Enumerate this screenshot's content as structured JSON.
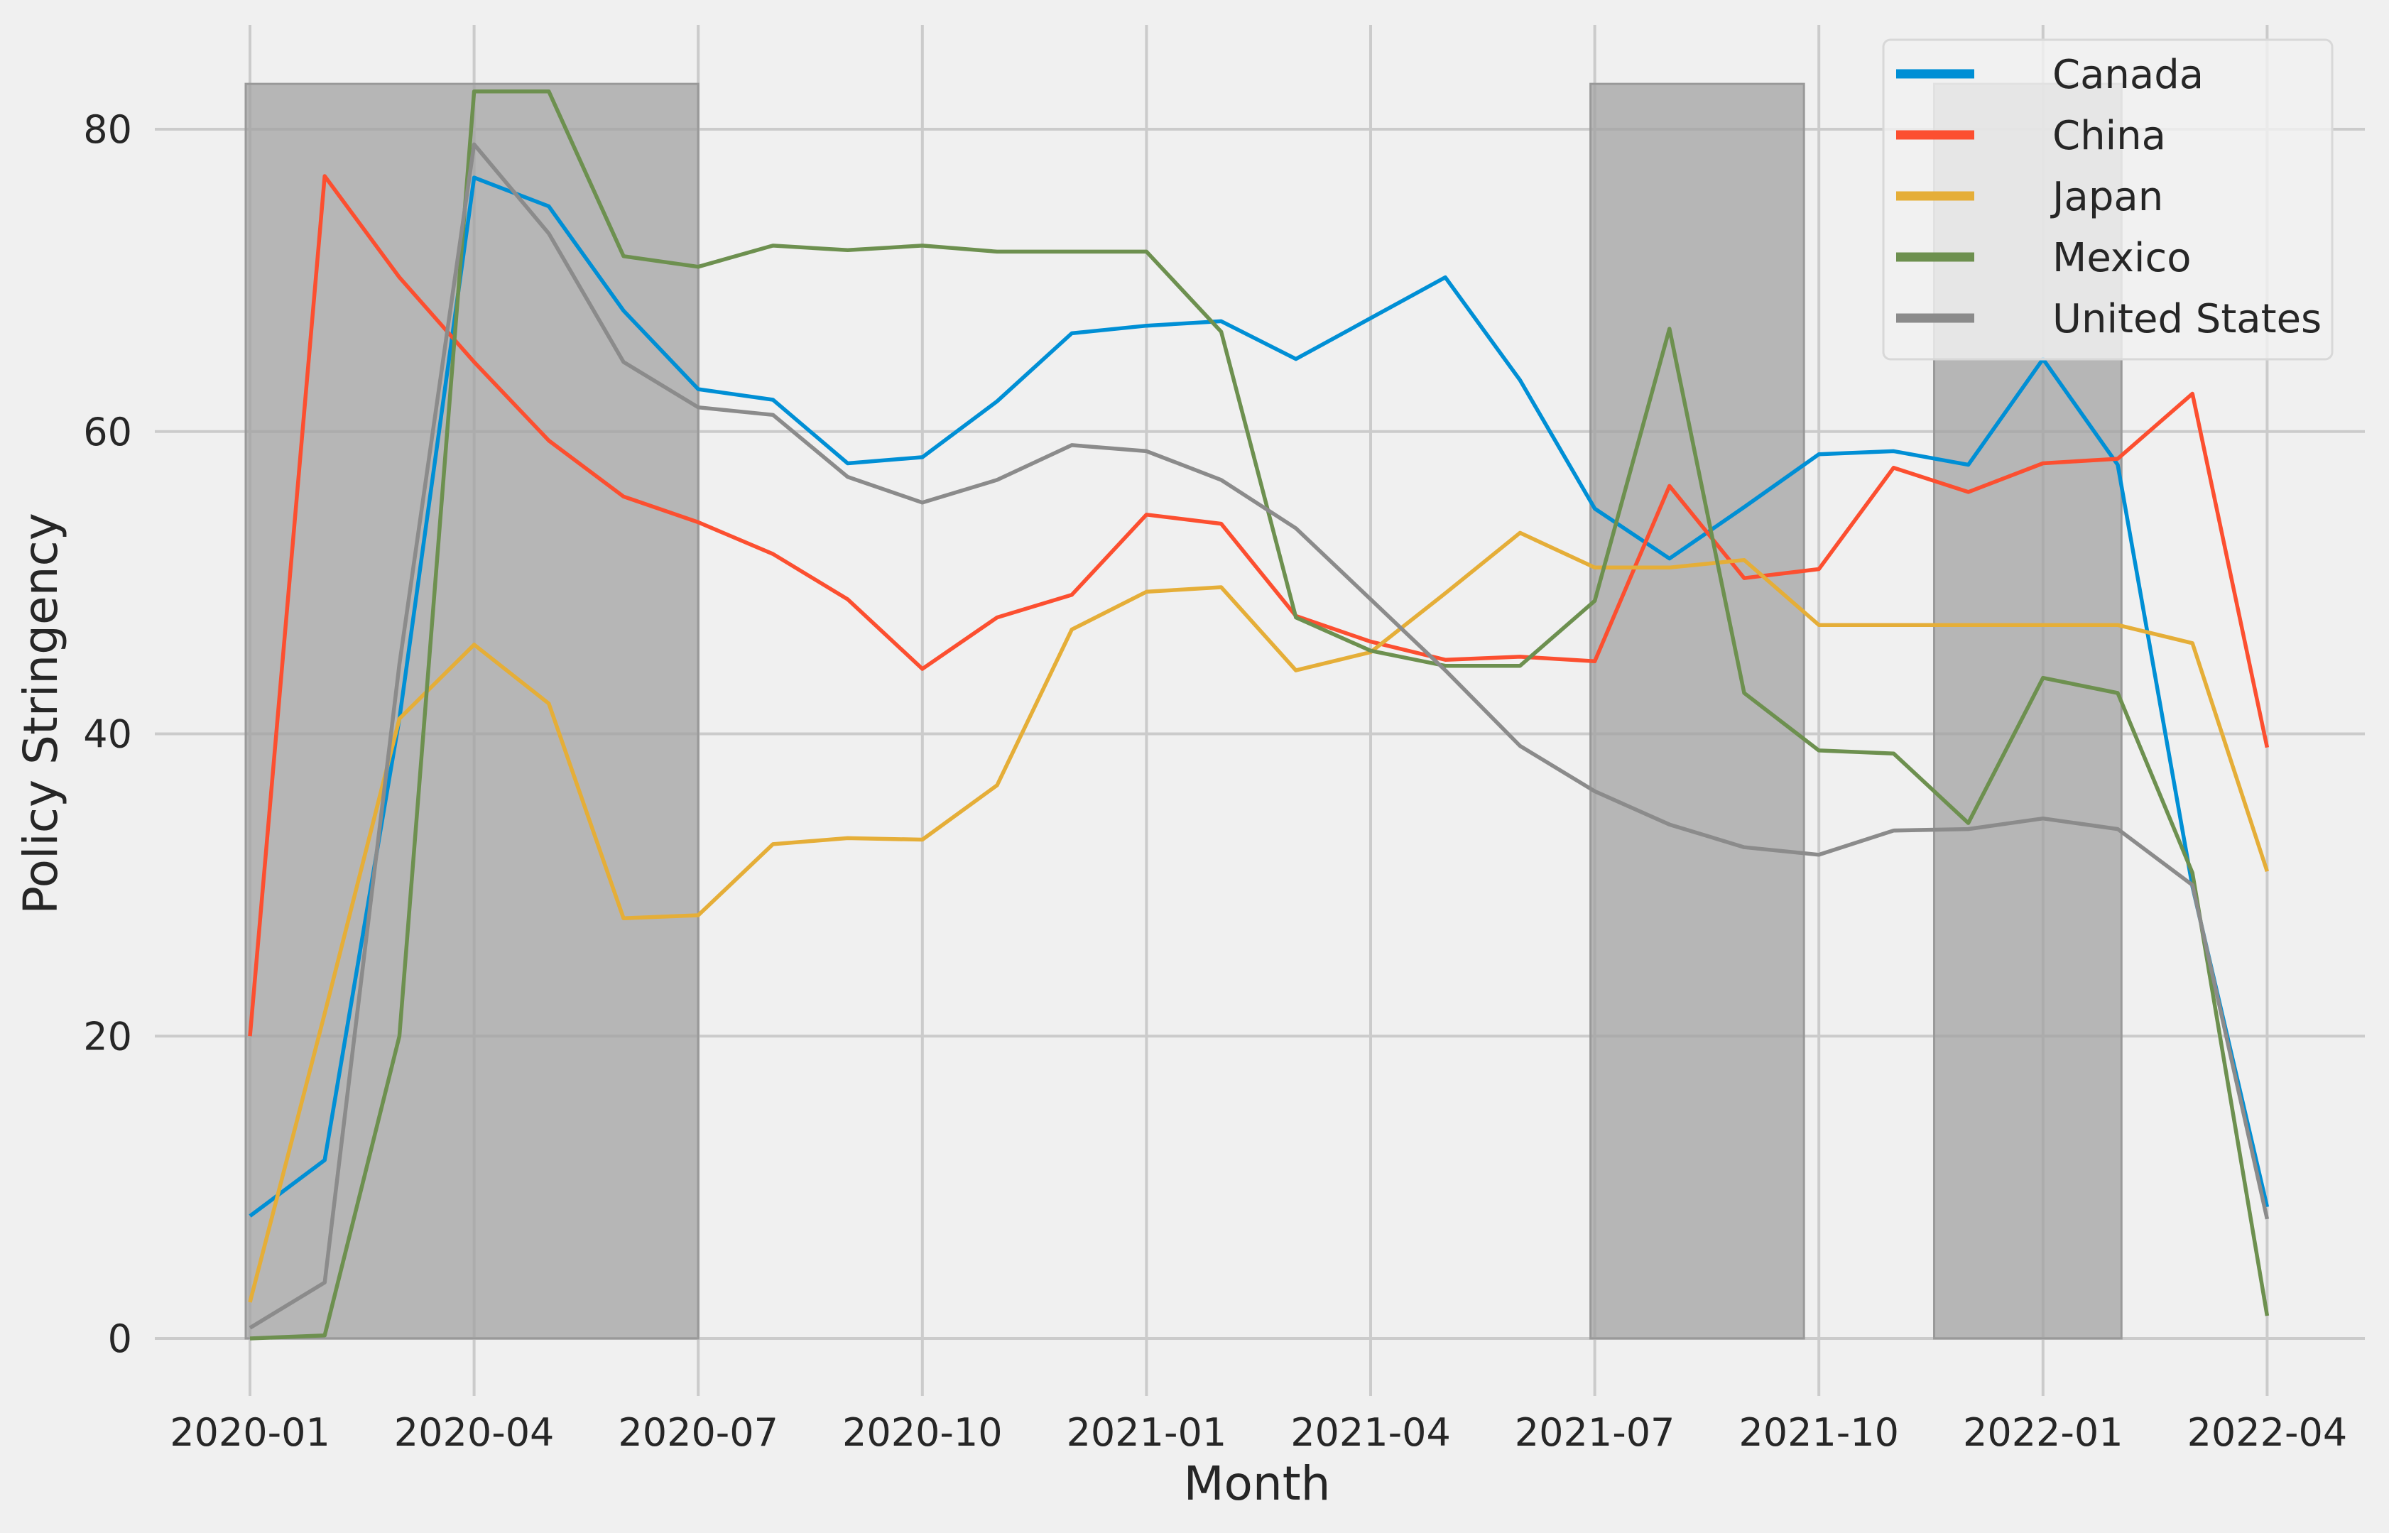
{
  "chart_data": {
    "type": "line",
    "title": "",
    "xlabel": "Month",
    "ylabel": "Policy Stringency",
    "x": [
      "2020-01",
      "2020-02",
      "2020-03",
      "2020-04",
      "2020-05",
      "2020-06",
      "2020-07",
      "2020-08",
      "2020-09",
      "2020-10",
      "2020-11",
      "2020-12",
      "2021-01",
      "2021-02",
      "2021-03",
      "2021-04",
      "2021-05",
      "2021-06",
      "2021-07",
      "2021-08",
      "2021-09",
      "2021-10",
      "2021-11",
      "2021-12",
      "2022-01",
      "2022-02",
      "2022-03",
      "2022-04"
    ],
    "x_ticks": [
      "2020-01",
      "2020-04",
      "2020-07",
      "2020-10",
      "2021-01",
      "2021-04",
      "2021-07",
      "2021-10",
      "2022-01",
      "2022-04"
    ],
    "y_ticks": [
      0,
      20,
      40,
      60,
      80
    ],
    "ylim": [
      -4,
      87
    ],
    "grid": true,
    "legend_position": "top-right",
    "shaded_periods": [
      {
        "start": 0,
        "end": 6,
        "top": 83
      },
      {
        "start": 18,
        "end": 20.8,
        "top": 83
      },
      {
        "start": 22.6,
        "end": 25.05,
        "top": 83
      }
    ],
    "series": [
      {
        "name": "Canada",
        "color": "#008fd5",
        "values": [
          8.1,
          11.8,
          41.0,
          76.8,
          74.9,
          68.0,
          62.8,
          62.1,
          57.9,
          58.3,
          62.0,
          66.5,
          67.0,
          67.3,
          64.8,
          67.5,
          70.2,
          63.4,
          54.9,
          51.6,
          55.0,
          58.5,
          58.7,
          57.8,
          64.8,
          57.8,
          29.9,
          8.7
        ]
      },
      {
        "name": "China",
        "color": "#fc4f30",
        "values": [
          20.0,
          76.9,
          70.2,
          64.6,
          59.4,
          55.7,
          54.0,
          51.9,
          48.9,
          44.3,
          47.7,
          49.2,
          54.5,
          53.9,
          47.8,
          46.1,
          44.9,
          45.1,
          44.8,
          56.4,
          50.3,
          50.9,
          57.6,
          56.0,
          57.9,
          58.2,
          62.5,
          39.1
        ]
      },
      {
        "name": "Japan",
        "color": "#e5ae38",
        "values": [
          2.4,
          21.5,
          41.0,
          45.9,
          42.0,
          27.8,
          28.0,
          32.7,
          33.1,
          33.0,
          36.6,
          46.9,
          49.4,
          49.7,
          44.2,
          45.4,
          49.3,
          53.3,
          51.0,
          51.0,
          51.5,
          47.2,
          47.2,
          47.2,
          47.2,
          47.2,
          46.0,
          30.9
        ]
      },
      {
        "name": "Mexico",
        "color": "#6d904f",
        "values": [
          0.0,
          0.2,
          20.0,
          82.5,
          82.5,
          71.6,
          70.9,
          72.3,
          72.0,
          72.3,
          71.9,
          71.9,
          71.9,
          66.6,
          47.7,
          45.5,
          44.5,
          44.5,
          48.8,
          66.8,
          42.7,
          38.9,
          38.7,
          34.1,
          43.7,
          42.7,
          30.8,
          1.5
        ]
      },
      {
        "name": "United States",
        "color": "#8b8b8b",
        "values": [
          0.7,
          3.7,
          44.6,
          79.0,
          73.1,
          64.6,
          61.6,
          61.1,
          57.0,
          55.3,
          56.8,
          59.1,
          58.7,
          56.8,
          53.6,
          48.9,
          44.2,
          39.2,
          36.2,
          34.0,
          32.5,
          32.0,
          33.6,
          33.7,
          34.4,
          33.7,
          30.0,
          7.9
        ]
      }
    ]
  }
}
